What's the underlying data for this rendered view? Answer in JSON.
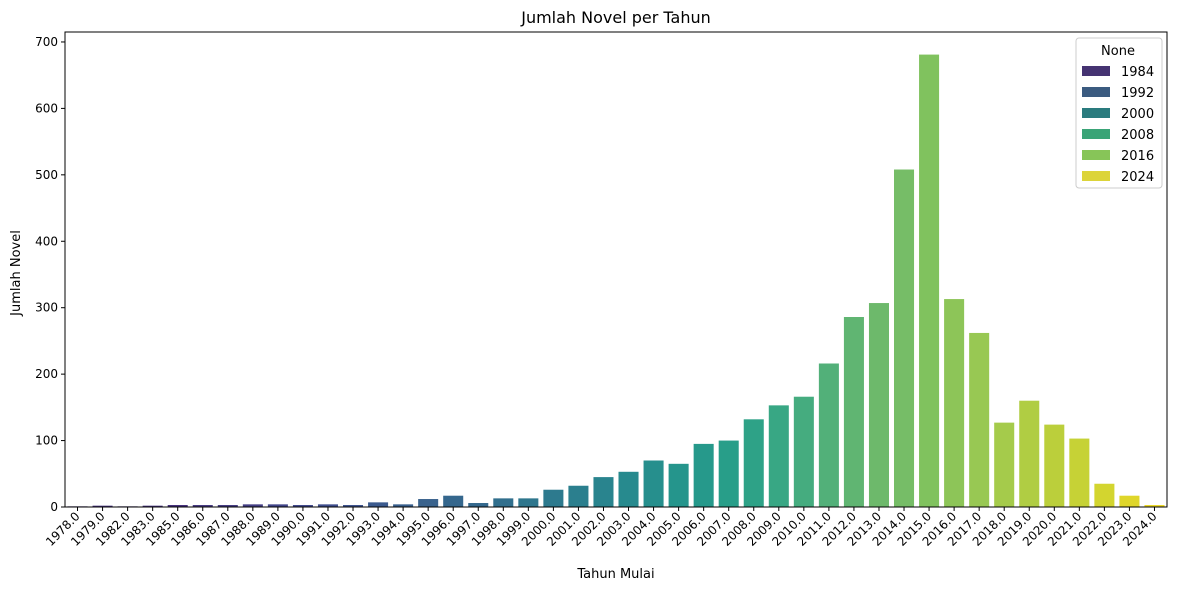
{
  "chart_data": {
    "type": "bar",
    "title": "Jumlah Novel per Tahun",
    "xlabel": "Tahun Mulai",
    "ylabel": "Jumlah Novel",
    "ylim": [
      0,
      715
    ],
    "yticks": [
      0,
      100,
      200,
      300,
      400,
      500,
      600,
      700
    ],
    "grid": false,
    "categories": [
      "1978.0",
      "1979.0",
      "1982.0",
      "1983.0",
      "1985.0",
      "1986.0",
      "1987.0",
      "1988.0",
      "1989.0",
      "1990.0",
      "1991.0",
      "1992.0",
      "1993.0",
      "1994.0",
      "1995.0",
      "1996.0",
      "1997.0",
      "1998.0",
      "1999.0",
      "2000.0",
      "2001.0",
      "2002.0",
      "2003.0",
      "2004.0",
      "2005.0",
      "2006.0",
      "2007.0",
      "2008.0",
      "2009.0",
      "2010.0",
      "2011.0",
      "2012.0",
      "2013.0",
      "2014.0",
      "2015.0",
      "2016.0",
      "2017.0",
      "2018.0",
      "2019.0",
      "2020.0",
      "2021.0",
      "2022.0",
      "2023.0",
      "2024.0"
    ],
    "values": [
      1,
      2,
      1,
      2,
      3,
      3,
      3,
      4,
      4,
      3,
      4,
      3,
      7,
      4,
      12,
      17,
      6,
      13,
      13,
      26,
      32,
      45,
      53,
      70,
      65,
      95,
      100,
      132,
      153,
      166,
      216,
      286,
      307,
      508,
      681,
      313,
      262,
      127,
      160,
      124,
      103,
      35,
      17,
      3
    ],
    "colors": [
      "#46327e",
      "#46327e",
      "#46327e",
      "#46327e",
      "#45307b",
      "#473b82",
      "#453c82",
      "#443f85",
      "#42468a",
      "#41498c",
      "#3f4e8d",
      "#3e538e",
      "#3b5a8e",
      "#385f8d",
      "#3a638d",
      "#35678d",
      "#34688d",
      "#316f8d",
      "#2e768d",
      "#2d7a8e",
      "#2b7f8e",
      "#29848e",
      "#278a8e",
      "#268f8d",
      "#25958c",
      "#26998b",
      "#289e89",
      "#2ea287",
      "#38a784",
      "#45ac7f",
      "#52b079",
      "#60b572",
      "#6db96b",
      "#76bd67",
      "#80c25e",
      "#8dc558",
      "#98c853",
      "#a5cb4b",
      "#b0cd43",
      "#bbcf3b",
      "#c6d236",
      "#d3d52f",
      "#dfd62a",
      "#ecd928"
    ],
    "legend": {
      "title": "None",
      "position": "top-right",
      "entries": [
        {
          "label": "1984",
          "color": "#453372"
        },
        {
          "label": "1992",
          "color": "#3b5b80"
        },
        {
          "label": "2000",
          "color": "#2a7b7e"
        },
        {
          "label": "2008",
          "color": "#3aa477"
        },
        {
          "label": "2016",
          "color": "#87c558"
        },
        {
          "label": "2024",
          "color": "#dcd43a"
        }
      ]
    }
  }
}
